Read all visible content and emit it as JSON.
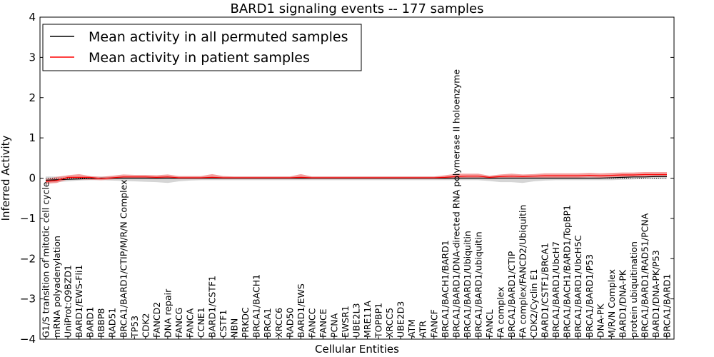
{
  "chart_data": {
    "type": "line",
    "title": "BARD1 signaling events -- 177 samples",
    "xlabel": "Cellular Entities",
    "ylabel": "Inferred Activity",
    "ylim": [
      -4,
      4
    ],
    "yticks": [
      -4,
      -3,
      -2,
      -1,
      0,
      1,
      2,
      3,
      4
    ],
    "ytick_labels": [
      "−4",
      "−3",
      "−2",
      "−1",
      "0",
      "1",
      "2",
      "3",
      "4"
    ],
    "legend_position": "top-left",
    "categories": [
      "G1/S transition of mitotic cell cycle",
      "mRNA polyadenylation",
      "UniProt:Q9BZD1",
      "BARD1/EWS-Fli1",
      "BARD1",
      "RBBP8",
      "RAD51",
      "BRCA1/BARD1/CTIP/M/R/N Complex",
      "TP53",
      "CDK2",
      "FANCD2",
      "DNA repair",
      "FANCG",
      "FANCA",
      "CCNE1",
      "BARD1/CSTF1",
      "CSTF1",
      "NBN",
      "PRKDC",
      "BRCA1/BACH1",
      "BRCA1",
      "XRCC6",
      "RAD50",
      "BARD1/EWS",
      "FANCC",
      "FANCE",
      "PCNA",
      "EWSR1",
      "UBE2L3",
      "MRE11A",
      "TOPBP1",
      "XRCC5",
      "UBE2D3",
      "ATM",
      "ATR",
      "FANCF",
      "BRCA1/BACH1/BARD1",
      "BRCA1/BARD1/DNA-directed RNA polymerase II holoenzyme",
      "BRCA1/BARD1/Ubiquitin",
      "BRCA1/BARD1/ubiquitin",
      "FANCL",
      "FA complex",
      "BRCA1/BARD1/CTIP",
      "FA complex/FANCD2/Ubiquitin",
      "CDK2/Cyclin E1",
      "BARD1/CSTF1/BRCA1",
      "BRCA1/BARD1/UbcH7",
      "BRCA1/BACH1/BARD1/TopBP1",
      "BRCA1/BARD1/UbcH5C",
      "BRCA1/BARD1/P53",
      "DNA-PK",
      "M/R/N Complex",
      "BARD1/DNA-PK",
      "protein ubiquitination",
      "BRCA1/BARD1/RAD51/PCNA",
      "BARD1/DNA-PK/P53",
      "BRCA1/BARD1"
    ],
    "series": [
      {
        "name": "Mean activity in all permuted samples",
        "color": "#000000",
        "values": [
          -0.05,
          -0.04,
          -0.03,
          -0.02,
          -0.01,
          0,
          0,
          0,
          0,
          0,
          0,
          0,
          0,
          0,
          0,
          0,
          0,
          0,
          0,
          0,
          0,
          0,
          0,
          0,
          0,
          0,
          0,
          0,
          0,
          0,
          0,
          0,
          0,
          0,
          0,
          0,
          0,
          0,
          0,
          0,
          0,
          0,
          0,
          0,
          0,
          0,
          0,
          0,
          0,
          0,
          0,
          0.01,
          0.02,
          0.03,
          0.03,
          0.04,
          0.04
        ],
        "band_low": [
          -0.12,
          -0.1,
          -0.08,
          -0.06,
          -0.05,
          -0.05,
          -0.06,
          -0.07,
          -0.08,
          -0.09,
          -0.1,
          -0.12,
          -0.08,
          -0.06,
          -0.05,
          -0.05,
          -0.05,
          -0.05,
          -0.05,
          -0.05,
          -0.05,
          -0.05,
          -0.05,
          -0.05,
          -0.05,
          -0.05,
          -0.05,
          -0.05,
          -0.05,
          -0.05,
          -0.05,
          -0.05,
          -0.05,
          -0.05,
          -0.05,
          -0.05,
          -0.05,
          -0.05,
          -0.05,
          -0.05,
          -0.07,
          -0.1,
          -0.1,
          -0.12,
          -0.08,
          -0.06,
          -0.05,
          -0.05,
          -0.05,
          -0.05,
          -0.05,
          -0.05,
          -0.04,
          -0.03,
          -0.02,
          -0.02,
          -0.02
        ],
        "band_high": [
          0.04,
          0.04,
          0.04,
          0.04,
          0.04,
          0.04,
          0.04,
          0.04,
          0.04,
          0.04,
          0.04,
          0.04,
          0.04,
          0.04,
          0.04,
          0.04,
          0.04,
          0.04,
          0.04,
          0.04,
          0.04,
          0.04,
          0.04,
          0.04,
          0.04,
          0.04,
          0.04,
          0.04,
          0.04,
          0.04,
          0.04,
          0.04,
          0.04,
          0.04,
          0.04,
          0.04,
          0.04,
          0.04,
          0.04,
          0.04,
          0.04,
          0.04,
          0.04,
          0.04,
          0.04,
          0.04,
          0.05,
          0.05,
          0.05,
          0.05,
          0.05,
          0.06,
          0.07,
          0.08,
          0.08,
          0.09,
          0.09
        ]
      },
      {
        "name": "Mean activity in patient samples",
        "color": "#ff0000",
        "values": [
          -0.08,
          -0.06,
          0.02,
          0.02,
          0.02,
          -0.01,
          0.01,
          0.03,
          0.03,
          0.03,
          0.02,
          0.03,
          0.01,
          0.01,
          0.01,
          0.02,
          0.01,
          0.01,
          0.01,
          0.01,
          0.01,
          0.01,
          0.01,
          0.02,
          0.01,
          0.01,
          0.01,
          0.01,
          0.01,
          0.01,
          0.01,
          0.01,
          0.01,
          0.01,
          0.01,
          0.01,
          0.02,
          0.04,
          0.05,
          0.05,
          0.02,
          0.04,
          0.05,
          0.04,
          0.05,
          0.06,
          0.06,
          0.06,
          0.06,
          0.07,
          0.06,
          0.07,
          0.08,
          0.08,
          0.09,
          0.09,
          0.09
        ],
        "band_low": [
          -0.14,
          -0.12,
          -0.03,
          -0.03,
          -0.04,
          -0.05,
          -0.03,
          -0.01,
          -0.01,
          -0.01,
          -0.02,
          -0.01,
          -0.02,
          -0.02,
          -0.02,
          -0.01,
          -0.02,
          -0.02,
          -0.02,
          -0.02,
          -0.02,
          -0.02,
          -0.02,
          -0.02,
          -0.02,
          -0.02,
          -0.02,
          -0.02,
          -0.02,
          -0.02,
          -0.02,
          -0.02,
          -0.02,
          -0.02,
          -0.02,
          -0.02,
          -0.02,
          -0.01,
          0,
          0,
          -0.02,
          -0.01,
          0,
          -0.01,
          0,
          0.01,
          0.01,
          0.01,
          0.01,
          0.02,
          0.01,
          0.02,
          0.03,
          0.03,
          0.03,
          0.03,
          0.03
        ],
        "band_high": [
          -0.02,
          0.03,
          0.07,
          0.1,
          0.05,
          0.03,
          0.06,
          0.09,
          0.08,
          0.08,
          0.07,
          0.09,
          0.05,
          0.05,
          0.05,
          0.1,
          0.05,
          0.04,
          0.04,
          0.04,
          0.04,
          0.04,
          0.04,
          0.1,
          0.04,
          0.04,
          0.04,
          0.04,
          0.04,
          0.04,
          0.04,
          0.04,
          0.04,
          0.04,
          0.04,
          0.04,
          0.07,
          0.11,
          0.11,
          0.11,
          0.06,
          0.09,
          0.11,
          0.09,
          0.1,
          0.12,
          0.12,
          0.12,
          0.12,
          0.13,
          0.12,
          0.13,
          0.14,
          0.14,
          0.15,
          0.15,
          0.15
        ]
      }
    ],
    "baseline_style": "dotted"
  }
}
